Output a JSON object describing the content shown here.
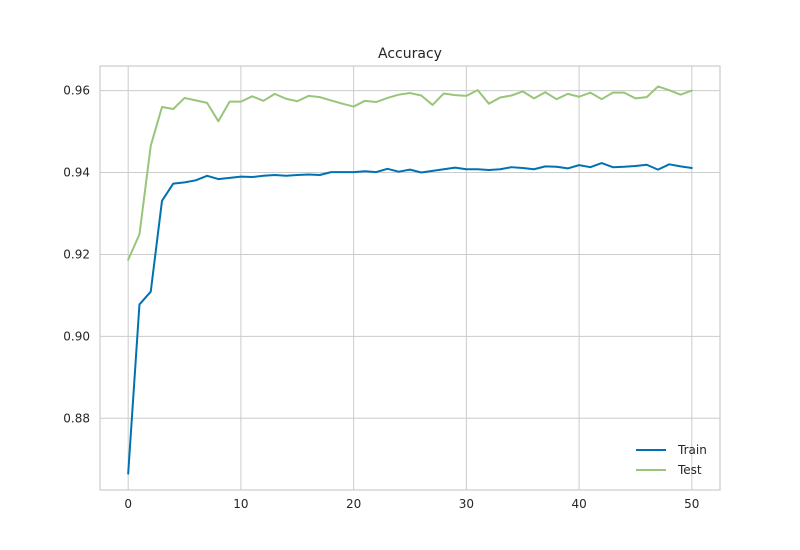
{
  "chart_data": {
    "type": "line",
    "title": "Accuracy",
    "xlabel": "",
    "ylabel": "",
    "xlim": [
      -2.5,
      52.5
    ],
    "ylim": [
      0.8625,
      0.966
    ],
    "xticks": [
      0,
      10,
      20,
      30,
      40,
      50
    ],
    "yticks": [
      0.88,
      0.9,
      0.92,
      0.94,
      0.96
    ],
    "xtick_labels": [
      "0",
      "10",
      "20",
      "30",
      "40",
      "50"
    ],
    "ytick_labels": [
      "0.88",
      "0.90",
      "0.92",
      "0.94",
      "0.96"
    ],
    "grid": true,
    "legend_position": "lower-right",
    "x": [
      0,
      1,
      2,
      3,
      4,
      5,
      6,
      7,
      8,
      9,
      10,
      11,
      12,
      13,
      14,
      15,
      16,
      17,
      18,
      19,
      20,
      21,
      22,
      23,
      24,
      25,
      26,
      27,
      28,
      29,
      30,
      31,
      32,
      33,
      34,
      35,
      36,
      37,
      38,
      39,
      40,
      41,
      42,
      43,
      44,
      45,
      46,
      47,
      48,
      49,
      50
    ],
    "series": [
      {
        "name": "Train",
        "color": "#0072b2",
        "values": [
          0.8665,
          0.9078,
          0.9109,
          0.9331,
          0.9373,
          0.9376,
          0.9381,
          0.9392,
          0.9384,
          0.9387,
          0.939,
          0.9389,
          0.9392,
          0.9394,
          0.9392,
          0.9394,
          0.9395,
          0.9394,
          0.9401,
          0.9401,
          0.9401,
          0.9403,
          0.9401,
          0.9409,
          0.9402,
          0.9407,
          0.94,
          0.9404,
          0.9408,
          0.9412,
          0.9408,
          0.9408,
          0.9406,
          0.9408,
          0.9413,
          0.9411,
          0.9408,
          0.9415,
          0.9414,
          0.941,
          0.9418,
          0.9413,
          0.9423,
          0.9413,
          0.9414,
          0.9416,
          0.9419,
          0.9407,
          0.942,
          0.9415,
          0.9411
        ]
      },
      {
        "name": "Test",
        "color": "#99c57a",
        "values": [
          0.9187,
          0.9249,
          0.9465,
          0.956,
          0.9555,
          0.9582,
          0.9576,
          0.957,
          0.9525,
          0.9573,
          0.9573,
          0.9586,
          0.9575,
          0.9592,
          0.958,
          0.9574,
          0.9587,
          0.9584,
          0.9576,
          0.9568,
          0.9561,
          0.9575,
          0.9572,
          0.9582,
          0.959,
          0.9594,
          0.9588,
          0.9565,
          0.9593,
          0.9589,
          0.9587,
          0.9601,
          0.9568,
          0.9583,
          0.9588,
          0.9598,
          0.9581,
          0.9596,
          0.9579,
          0.9592,
          0.9585,
          0.9595,
          0.9579,
          0.9595,
          0.9595,
          0.9581,
          0.9584,
          0.961,
          0.9601,
          0.959,
          0.96
        ]
      }
    ]
  }
}
